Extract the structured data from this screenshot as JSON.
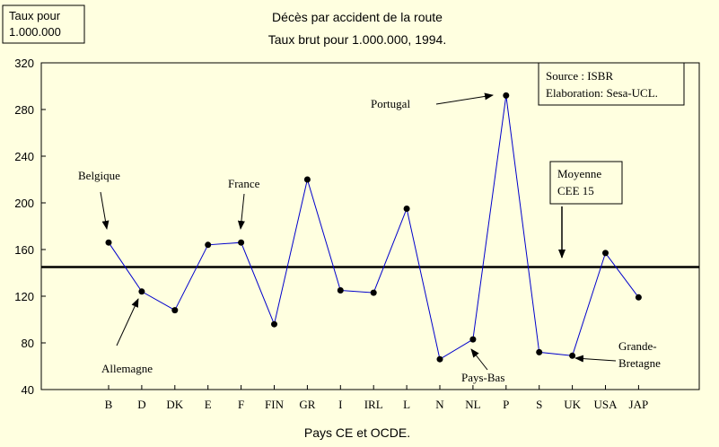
{
  "chart_data": {
    "type": "line",
    "title": "Décès par accident de la route",
    "subtitle": "Taux brut pour 1.000.000, 1994.",
    "ylabel_lines": [
      "Taux pour",
      "1.000.000"
    ],
    "xlabel": "Pays CE et OCDE.",
    "ylim": [
      40,
      320
    ],
    "yticks": [
      40,
      80,
      120,
      160,
      200,
      240,
      280,
      320
    ],
    "grid": false,
    "categories": [
      "B",
      "D",
      "DK",
      "E",
      "F",
      "FIN",
      "GR",
      "I",
      "IRL",
      "L",
      "N",
      "NL",
      "P",
      "S",
      "UK",
      "USA",
      "JAP"
    ],
    "values": [
      166,
      124,
      108,
      164,
      166,
      96,
      220,
      125,
      123,
      195,
      66,
      83,
      292,
      72,
      69,
      157,
      119
    ],
    "series_color": "#0000cc",
    "reference_line": {
      "value": 145,
      "label_lines": [
        "Moyenne",
        "CEE 15"
      ]
    },
    "source_lines": [
      "Source : ISBR",
      "Elaboration: Sesa-UCL."
    ],
    "annotations": [
      {
        "key": "belgique",
        "lines": [
          "Belgique"
        ]
      },
      {
        "key": "allemagne",
        "lines": [
          "Allemagne"
        ]
      },
      {
        "key": "france",
        "lines": [
          "France"
        ]
      },
      {
        "key": "portugal",
        "lines": [
          "Portugal"
        ]
      },
      {
        "key": "pays-bas",
        "lines": [
          "Pays-Bas"
        ]
      },
      {
        "key": "grande-bretagne",
        "lines": [
          "Grande-",
          "Bretagne"
        ]
      }
    ]
  }
}
